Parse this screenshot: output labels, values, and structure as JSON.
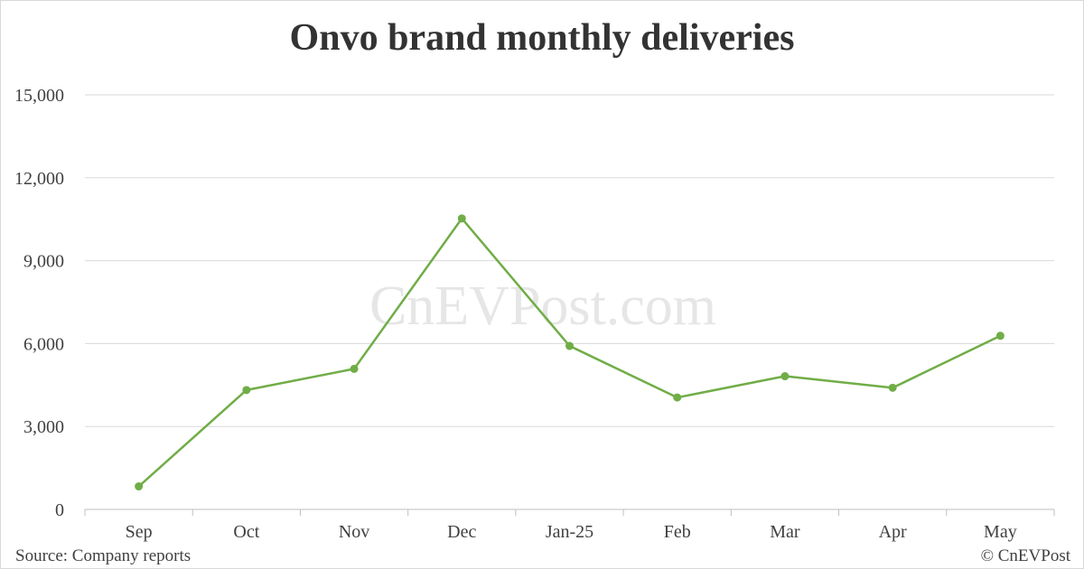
{
  "chart_data": {
    "type": "line",
    "title": "Onvo brand monthly deliveries",
    "xlabel": "",
    "ylabel": "",
    "categories": [
      "Sep",
      "Oct",
      "Nov",
      "Dec",
      "Jan-25",
      "Feb",
      "Mar",
      "Apr",
      "May"
    ],
    "series": [
      {
        "values": [
          832,
          4319,
          5085,
          10528,
          5914,
          4049,
          4820,
          4400,
          6281
        ]
      }
    ],
    "ylim": [
      0,
      15000
    ],
    "yticks": [
      0,
      3000,
      6000,
      9000,
      12000,
      15000
    ],
    "ytick_labels": [
      "0",
      "3,000",
      "6,000",
      "9,000",
      "12,000",
      "15,000"
    ],
    "grid": true,
    "legend": "none",
    "line_color": "#70ad47",
    "grid_color": "#d9d9d9"
  },
  "source": "Source: Company reports",
  "copyright": "© CnEVPost",
  "watermark": "CnEVPost.com"
}
